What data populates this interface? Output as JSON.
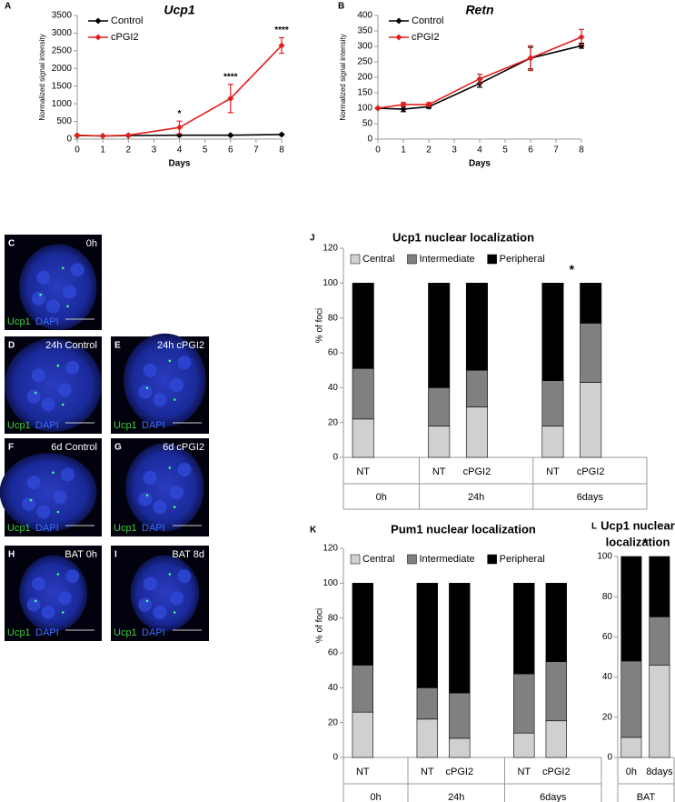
{
  "chart_data": [
    {
      "type": "line",
      "panel": "A",
      "title": "Ucp1",
      "x_label": "Days",
      "y_label": "Normalized signal intensity",
      "x": [
        0,
        1,
        2,
        4,
        6,
        8
      ],
      "xlim": [
        0,
        8
      ],
      "xticks": [
        0,
        1,
        2,
        3,
        4,
        5,
        6,
        7,
        8
      ],
      "ylim": [
        0,
        3500
      ],
      "yticks": [
        0,
        500,
        1000,
        1500,
        2000,
        2500,
        3000,
        3500
      ],
      "legend": "top-left",
      "series": [
        {
          "name": "Control",
          "color": "#000000",
          "values": [
            100,
            90,
            100,
            110,
            110,
            130
          ],
          "errors": [
            10,
            10,
            10,
            20,
            20,
            20
          ]
        },
        {
          "name": "cPGI2",
          "color": "#e02020",
          "values": [
            110,
            90,
            110,
            330,
            1150,
            2650
          ],
          "errors": [
            10,
            10,
            20,
            180,
            400,
            220
          ]
        }
      ],
      "annotations": [
        {
          "text": "*",
          "x": 4
        },
        {
          "text": "****",
          "x": 6
        },
        {
          "text": "****",
          "x": 8
        }
      ]
    },
    {
      "type": "line",
      "panel": "B",
      "title": "Retn",
      "x_label": "Days",
      "y_label": "Normalized signal intensity",
      "x": [
        0,
        1,
        2,
        4,
        6,
        8
      ],
      "xlim": [
        0,
        8
      ],
      "xticks": [
        0,
        1,
        2,
        3,
        4,
        5,
        6,
        7,
        8
      ],
      "ylim": [
        0,
        400
      ],
      "yticks": [
        0,
        50,
        100,
        150,
        200,
        250,
        300,
        350,
        400
      ],
      "legend": "top-left",
      "series": [
        {
          "name": "Control",
          "color": "#000000",
          "values": [
            100,
            97,
            105,
            180,
            262,
            302
          ],
          "errors": [
            2,
            8,
            5,
            12,
            35,
            8
          ]
        },
        {
          "name": "cPGI2",
          "color": "#e02020",
          "values": [
            100,
            112,
            112,
            195,
            262,
            330
          ],
          "errors": [
            2,
            6,
            6,
            15,
            40,
            25
          ]
        }
      ]
    },
    {
      "type": "stacked-bar",
      "panel": "J",
      "title": "Ucp1 nuclear localization",
      "y_label": "% of foci",
      "categories": [
        "NT",
        "NT",
        "cPGI2",
        "NT",
        "cPGI2"
      ],
      "groups": [
        "0h",
        "24h",
        "24h",
        "6days",
        "6days"
      ],
      "ylim": [
        0,
        120
      ],
      "yticks": [
        0,
        20,
        40,
        60,
        80,
        100,
        120
      ],
      "legend": "top",
      "series": [
        {
          "name": "Central",
          "color": "#d0d0d0",
          "values": [
            22,
            18,
            29,
            18,
            43
          ]
        },
        {
          "name": "Intermediate",
          "color": "#808080",
          "values": [
            29,
            22,
            21,
            26,
            34
          ]
        },
        {
          "name": "Peripheral",
          "color": "#000000",
          "values": [
            49,
            60,
            50,
            56,
            23
          ]
        }
      ],
      "annotations": [
        {
          "text": "*",
          "group": "6days"
        }
      ]
    },
    {
      "type": "stacked-bar",
      "panel": "K",
      "title": "Pum1 nuclear localization",
      "y_label": "% of foci",
      "categories": [
        "NT",
        "NT",
        "cPGI2",
        "NT",
        "cPGI2"
      ],
      "groups": [
        "0h",
        "24h",
        "24h",
        "6days",
        "6days"
      ],
      "ylim": [
        0,
        120
      ],
      "yticks": [
        0,
        20,
        40,
        60,
        80,
        100,
        120
      ],
      "legend": "top",
      "series": [
        {
          "name": "Central",
          "color": "#d0d0d0",
          "values": [
            26,
            22,
            11,
            14,
            21
          ]
        },
        {
          "name": "Intermediate",
          "color": "#808080",
          "values": [
            27,
            18,
            26,
            34,
            34
          ]
        },
        {
          "name": "Peripheral",
          "color": "#000000",
          "values": [
            47,
            60,
            63,
            52,
            45
          ]
        }
      ]
    },
    {
      "type": "stacked-bar",
      "panel": "L",
      "title": [
        "Ucp1 nuclear",
        "localization"
      ],
      "categories": [
        "0h",
        "8days"
      ],
      "groups": [
        "BAT",
        "BAT"
      ],
      "ylim": [
        0,
        100
      ],
      "yticks": [
        0,
        20,
        40,
        60,
        80,
        100
      ],
      "series": [
        {
          "color": "#d0d0d0",
          "values": [
            10,
            46
          ]
        },
        {
          "color": "#808080",
          "values": [
            38,
            24
          ]
        },
        {
          "color": "#000000",
          "values": [
            52,
            30
          ]
        }
      ],
      "annotations": [
        {
          "text": "*",
          "group": "BAT"
        }
      ]
    }
  ],
  "micrograph_channels": [
    "Ucp1",
    "DAPI"
  ],
  "micrographs": [
    {
      "panel": "C",
      "label": "0h"
    },
    {
      "panel": "D",
      "label": "24h Control"
    },
    {
      "panel": "E",
      "label": "24h cPGI2"
    },
    {
      "panel": "F",
      "label": "6d Control"
    },
    {
      "panel": "G",
      "label": "6d cPGI2"
    },
    {
      "panel": "H",
      "label": "BAT 0h"
    },
    {
      "panel": "I",
      "label": "BAT 8d"
    }
  ]
}
